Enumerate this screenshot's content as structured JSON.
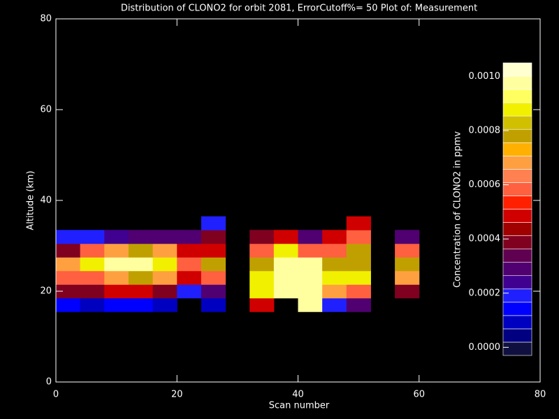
{
  "chart_data": {
    "type": "contour",
    "title": "Distribution of CLONO2 for orbit 2081, ErrorCutoff%= 50  Plot of: Measurement",
    "xlabel": "Scan number",
    "ylabel": "Altitude (km)",
    "xlim": [
      0,
      80
    ],
    "xticks": [
      0,
      20,
      40,
      60,
      80
    ],
    "ylim": [
      0,
      80
    ],
    "yticks": [
      0,
      20,
      40,
      60,
      80
    ],
    "x": [
      2,
      6,
      10,
      14,
      18,
      22,
      26,
      30,
      34,
      38,
      42,
      46,
      50,
      54,
      58
    ],
    "y": [
      17,
      20,
      23,
      26,
      29,
      32,
      35
    ],
    "z": [
      [
        0.00015,
        0.0001,
        0.00015,
        0.00012,
        0.0001,
        null,
        0.0001,
        null,
        0.0005,
        null,
        0.001,
        0.0002,
        0.0003,
        null,
        null
      ],
      [
        0.0004,
        0.0004,
        0.0005,
        0.0005,
        0.0004,
        0.0002,
        0.0003,
        null,
        0.0009,
        0.001,
        0.001,
        0.0007,
        0.0006,
        null,
        0.0004
      ],
      [
        0.0006,
        0.0006,
        0.0007,
        0.0008,
        0.0007,
        0.0005,
        0.0006,
        null,
        0.0009,
        0.001,
        0.001,
        0.0009,
        0.0009,
        null,
        0.0007
      ],
      [
        0.0007,
        0.0009,
        0.001,
        0.001,
        0.0009,
        0.0006,
        0.0008,
        null,
        0.0008,
        0.001,
        0.001,
        0.0008,
        0.0008,
        null,
        0.0008
      ],
      [
        0.0004,
        0.0006,
        0.0007,
        0.0008,
        0.0007,
        0.0005,
        0.0005,
        null,
        0.0006,
        0.0009,
        0.0006,
        0.0006,
        0.0008,
        null,
        0.0006
      ],
      [
        0.0002,
        0.0002,
        0.00025,
        0.0003,
        0.0003,
        0.0003,
        0.0004,
        null,
        0.0004,
        0.0005,
        0.0003,
        0.0005,
        0.0006,
        null,
        0.0003
      ],
      [
        null,
        null,
        null,
        null,
        null,
        null,
        0.0002,
        null,
        null,
        null,
        null,
        null,
        0.0005,
        null,
        null
      ]
    ],
    "colorbar": {
      "label": "Concentration of CLONO2 in ppmv",
      "zlim": [
        -3e-05,
        0.00105
      ],
      "ticks": [
        {
          "value": 0,
          "label": "0.0000"
        },
        {
          "value": 0.0002,
          "label": "0.0002"
        },
        {
          "value": 0.0004,
          "label": "0.0004"
        },
        {
          "value": 0.0006,
          "label": "0.0006"
        },
        {
          "value": 0.0008,
          "label": "0.0008"
        },
        {
          "value": 0.001,
          "label": "0.0010"
        }
      ],
      "colors": [
        "#101040",
        "#000080",
        "#0000c0",
        "#0000ff",
        "#2020ff",
        "#400090",
        "#500070",
        "#600050",
        "#800020",
        "#a00000",
        "#d00000",
        "#ff2000",
        "#ff6040",
        "#ff8050",
        "#ffa040",
        "#ffb000",
        "#c0a000",
        "#d0c000",
        "#f0f000",
        "#ffff60",
        "#ffffa0",
        "#ffffd0"
      ]
    }
  }
}
